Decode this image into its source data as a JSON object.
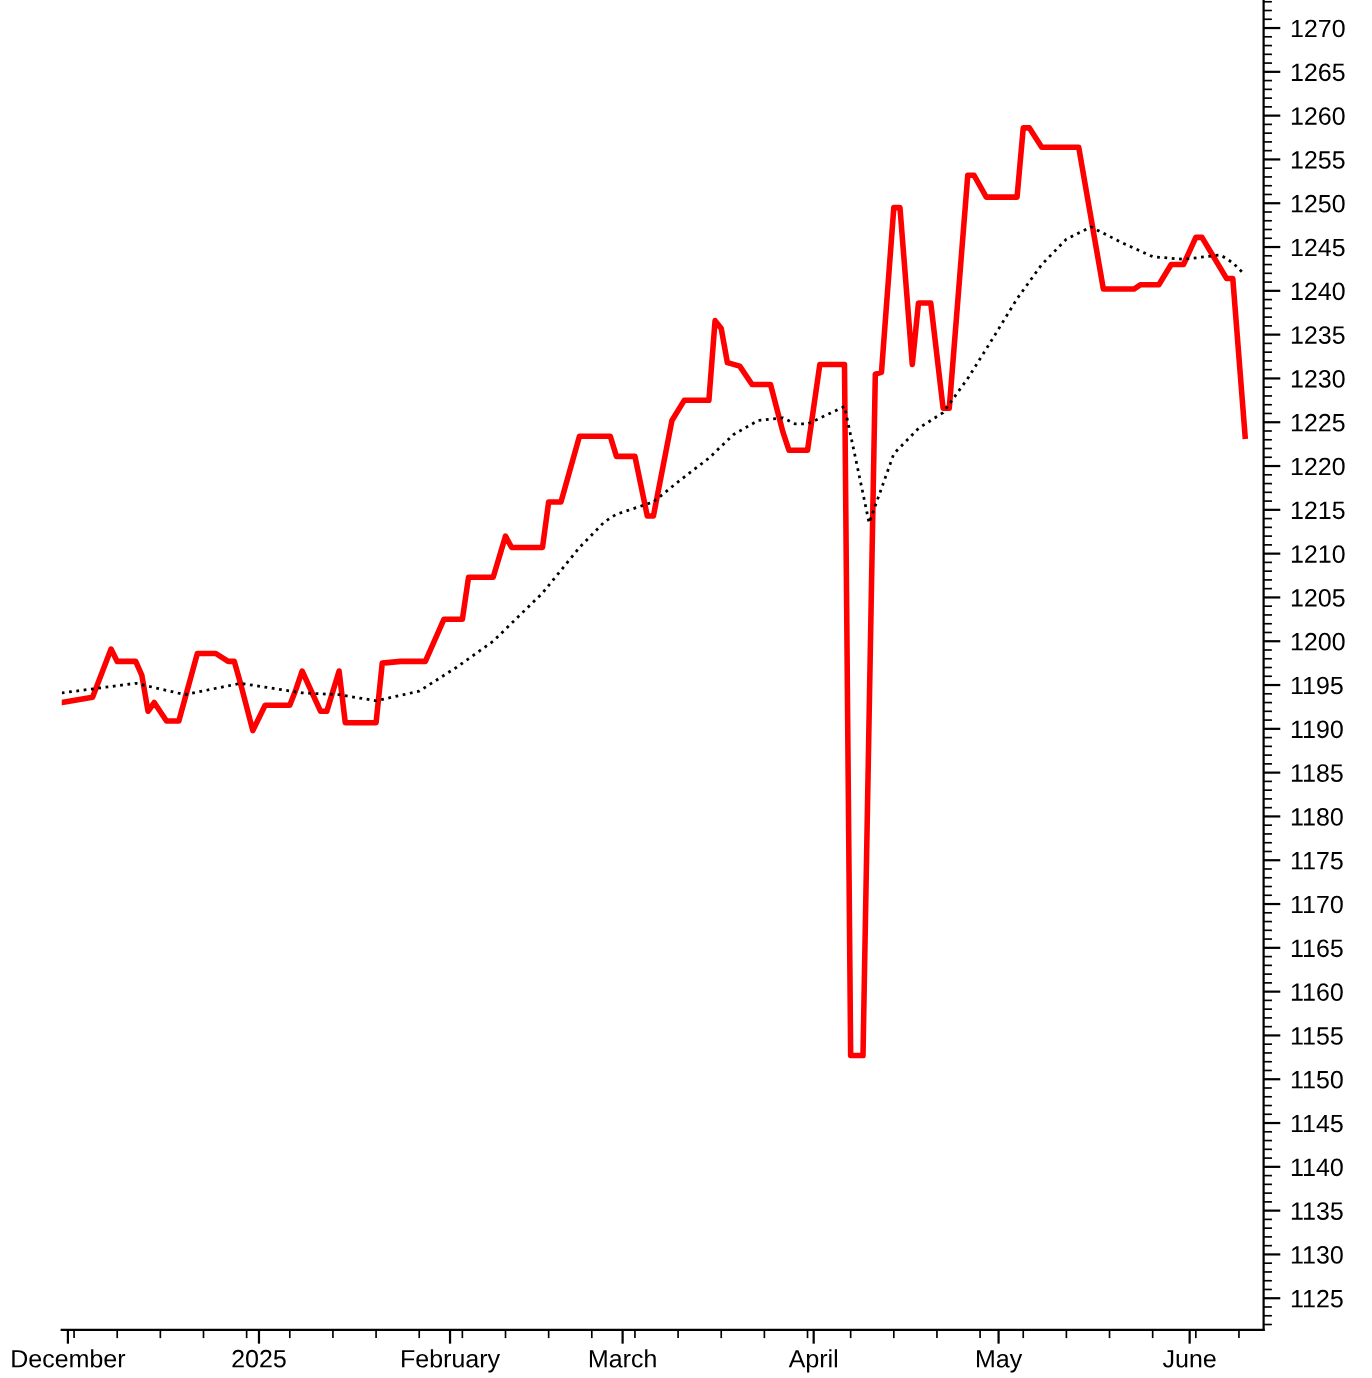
{
  "chart_data": {
    "type": "line",
    "xlim": [
      "2024-11-30",
      "2025-06-13"
    ],
    "xticks": [
      {
        "value": "2024-12-01",
        "label": "December"
      },
      {
        "value": "2025-01-01",
        "label": "2025"
      },
      {
        "value": "2025-02-01",
        "label": "February"
      },
      {
        "value": "2025-03-01",
        "label": "March"
      },
      {
        "value": "2025-04-01",
        "label": "April"
      },
      {
        "value": "2025-05-01",
        "label": "May"
      },
      {
        "value": "2025-06-01",
        "label": "June"
      }
    ],
    "ylim": [
      1121.4,
      1273.2
    ],
    "yticks": [
      1125,
      1130,
      1135,
      1140,
      1145,
      1150,
      1155,
      1160,
      1165,
      1170,
      1175,
      1180,
      1185,
      1190,
      1195,
      1200,
      1205,
      1210,
      1215,
      1220,
      1225,
      1230,
      1235,
      1240,
      1245,
      1250,
      1255,
      1260,
      1265,
      1270
    ],
    "grid": false,
    "series": [
      {
        "color": "#ff0000",
        "line_style": "solid",
        "x": [
          "2024-11-30",
          "2024-12-05",
          "2024-12-08",
          "2024-12-09",
          "2024-12-12",
          "2024-12-13",
          "2024-12-14",
          "2024-12-15",
          "2024-12-17",
          "2024-12-19",
          "2024-12-22",
          "2024-12-25",
          "2024-12-27",
          "2024-12-28",
          "2024-12-29",
          "2024-12-31",
          "2025-01-02",
          "2025-01-06",
          "2025-01-07",
          "2025-01-08",
          "2025-01-11",
          "2025-01-12",
          "2025-01-14",
          "2025-01-15",
          "2025-01-20",
          "2025-01-21",
          "2025-01-24",
          "2025-01-28",
          "2025-01-31",
          "2025-02-03",
          "2025-02-04",
          "2025-02-08",
          "2025-02-10",
          "2025-02-11",
          "2025-02-16",
          "2025-02-17",
          "2025-02-19",
          "2025-02-22",
          "2025-02-27",
          "2025-02-28",
          "2025-03-03",
          "2025-03-05",
          "2025-03-06",
          "2025-03-09",
          "2025-03-11",
          "2025-03-15",
          "2025-03-16",
          "2025-03-17",
          "2025-03-18",
          "2025-03-20",
          "2025-03-22",
          "2025-03-25",
          "2025-03-27",
          "2025-03-28",
          "2025-03-31",
          "2025-04-02",
          "2025-04-06",
          "2025-04-07",
          "2025-04-09",
          "2025-04-11",
          "2025-04-12",
          "2025-04-14",
          "2025-04-15",
          "2025-04-17",
          "2025-04-18",
          "2025-04-20",
          "2025-04-22",
          "2025-04-23",
          "2025-04-26",
          "2025-04-27",
          "2025-04-29",
          "2025-05-04",
          "2025-05-05",
          "2025-05-06",
          "2025-05-08",
          "2025-05-14",
          "2025-05-18",
          "2025-05-23",
          "2025-05-24",
          "2025-05-27",
          "2025-05-29",
          "2025-05-31",
          "2025-06-02",
          "2025-06-03",
          "2025-06-07",
          "2025-06-08",
          "2025-06-10"
        ],
        "values": [
          1193.0,
          1193.6,
          1199.1,
          1197.7,
          1197.7,
          1196.1,
          1192.0,
          1193.0,
          1190.9,
          1190.9,
          1198.6,
          1198.6,
          1197.7,
          1197.7,
          1195.2,
          1189.8,
          1192.7,
          1192.7,
          1194.5,
          1196.6,
          1192.0,
          1192.0,
          1196.6,
          1190.7,
          1190.7,
          1197.5,
          1197.7,
          1197.7,
          1202.5,
          1202.5,
          1207.3,
          1207.3,
          1212.0,
          1210.7,
          1210.7,
          1215.9,
          1215.9,
          1223.4,
          1223.4,
          1221.1,
          1221.1,
          1214.3,
          1214.3,
          1225.2,
          1227.5,
          1227.5,
          1236.6,
          1235.7,
          1231.8,
          1231.4,
          1229.3,
          1229.3,
          1223.9,
          1221.8,
          1221.8,
          1231.6,
          1231.6,
          1152.7,
          1152.7,
          1230.5,
          1230.7,
          1249.5,
          1249.5,
          1231.6,
          1238.6,
          1238.6,
          1226.6,
          1226.6,
          1253.2,
          1253.2,
          1250.7,
          1250.7,
          1258.6,
          1258.6,
          1256.4,
          1256.4,
          1240.2,
          1240.2,
          1240.7,
          1240.7,
          1243.0,
          1243.0,
          1246.1,
          1246.1,
          1241.4,
          1241.4,
          1223.4
        ]
      },
      {
        "color": "#000000",
        "line_style": "dotted",
        "x": [
          "2024-11-30",
          "2024-12-12",
          "2024-12-20",
          "2024-12-29",
          "2025-01-08",
          "2025-01-14",
          "2025-01-20",
          "2025-01-27",
          "2025-02-02",
          "2025-02-08",
          "2025-02-16",
          "2025-02-22",
          "2025-02-26",
          "2025-02-28",
          "2025-03-06",
          "2025-03-10",
          "2025-03-15",
          "2025-03-19",
          "2025-03-23",
          "2025-03-27",
          "2025-03-29",
          "2025-03-31",
          "2025-04-06",
          "2025-04-08",
          "2025-04-10",
          "2025-04-14",
          "2025-04-18",
          "2025-04-22",
          "2025-04-26",
          "2025-04-30",
          "2025-05-04",
          "2025-05-08",
          "2025-05-12",
          "2025-05-16",
          "2025-05-21",
          "2025-05-26",
          "2025-05-31",
          "2025-06-06",
          "2025-06-08",
          "2025-06-10"
        ],
        "values": [
          1194.1,
          1195.2,
          1193.9,
          1195.2,
          1194.1,
          1193.9,
          1193.2,
          1194.3,
          1197.0,
          1200.0,
          1205.5,
          1210.7,
          1213.6,
          1214.5,
          1215.9,
          1218.2,
          1220.9,
          1223.6,
          1225.2,
          1225.5,
          1224.8,
          1224.8,
          1226.8,
          1220.2,
          1213.5,
          1221.4,
          1224.3,
          1226.1,
          1230.0,
          1234.5,
          1239.1,
          1243.0,
          1245.9,
          1247.3,
          1245.5,
          1243.9,
          1243.6,
          1244.1,
          1243.2,
          1241.8
        ]
      }
    ]
  }
}
